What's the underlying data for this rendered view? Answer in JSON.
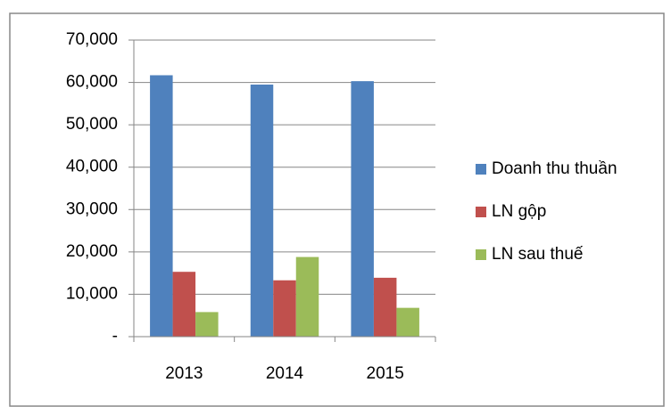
{
  "chart_data": {
    "type": "bar",
    "categories": [
      "2013",
      "2014",
      "2015"
    ],
    "series": [
      {
        "name": "Doanh thu thuần",
        "color": "#4f81bd",
        "values": [
          61700,
          59500,
          60300
        ]
      },
      {
        "name": "LN gộp",
        "color": "#c0504d",
        "values": [
          15300,
          13300,
          13900
        ]
      },
      {
        "name": "LN sau thuế",
        "color": "#9bbb59",
        "values": [
          5800,
          18800,
          6800
        ]
      }
    ],
    "ylim": [
      0,
      70000
    ],
    "yticks": [
      {
        "value": 0,
        "label": "-"
      },
      {
        "value": 10000,
        "label": "10,000"
      },
      {
        "value": 20000,
        "label": "20,000"
      },
      {
        "value": 30000,
        "label": "30,000"
      },
      {
        "value": 40000,
        "label": "40,000"
      },
      {
        "value": 50000,
        "label": "50,000"
      },
      {
        "value": 60000,
        "label": "60,000"
      },
      {
        "value": 70000,
        "label": "70,000"
      }
    ],
    "grid": true,
    "legend": "right"
  }
}
